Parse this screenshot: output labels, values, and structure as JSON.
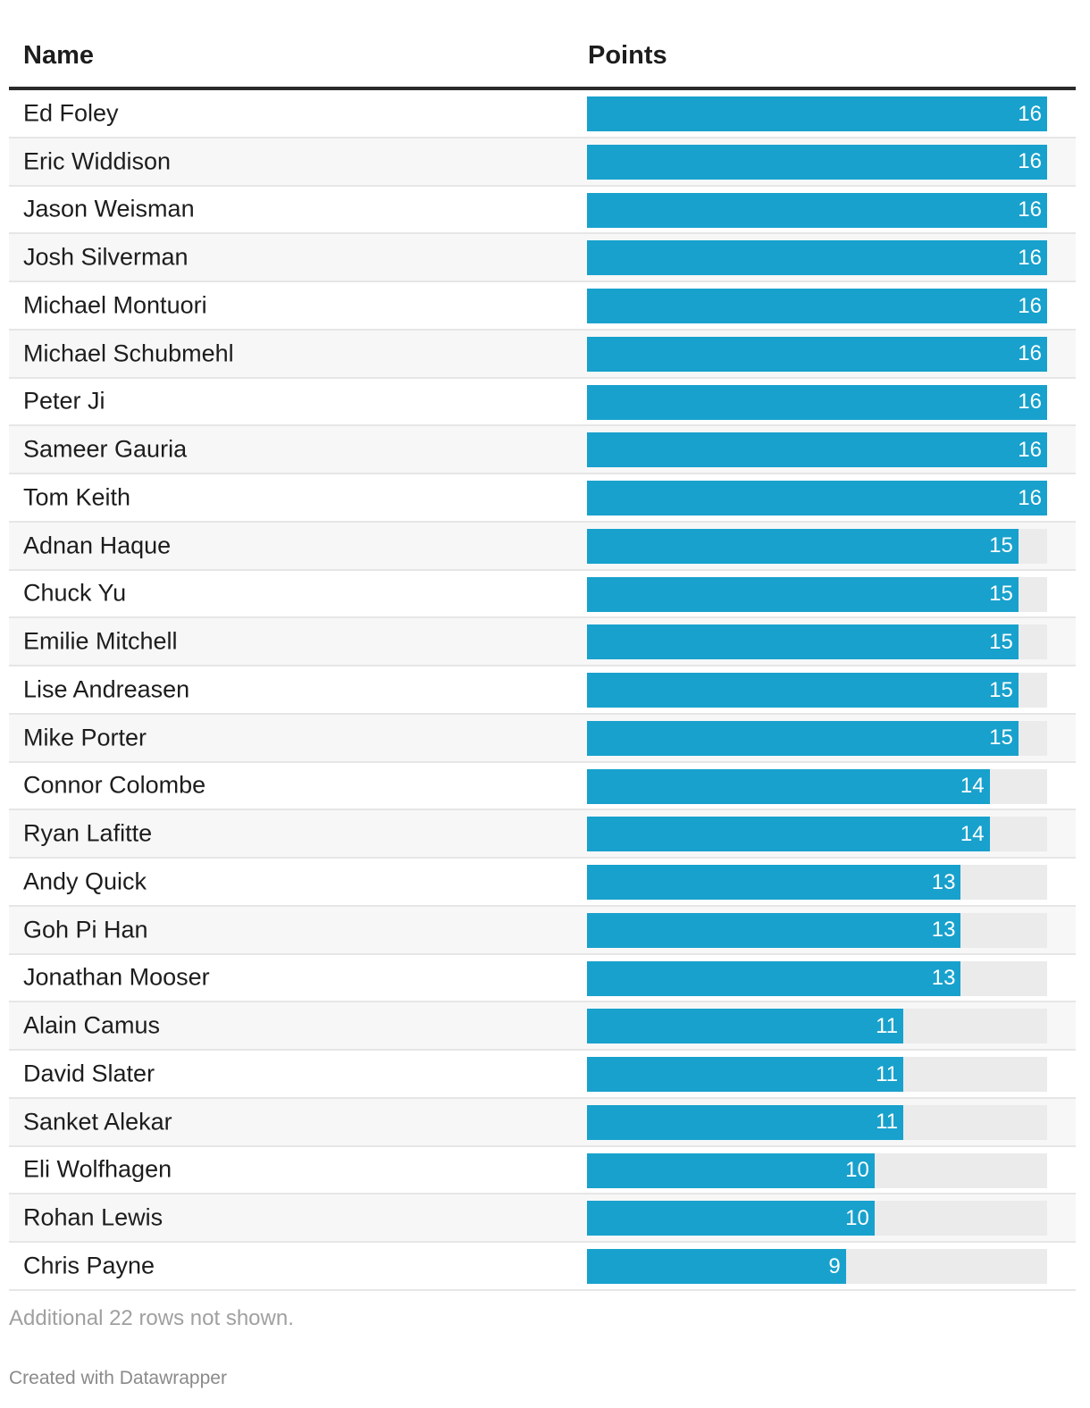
{
  "columns": {
    "name": "Name",
    "points": "Points"
  },
  "chart_data": {
    "type": "bar",
    "orientation": "horizontal",
    "xlim": [
      0,
      16
    ],
    "bar_color": "#18a1cd",
    "track_color": "#ebebeb",
    "categories": [
      "Ed Foley",
      "Eric Widdison",
      "Jason Weisman",
      "Josh Silverman",
      "Michael Montuori",
      "Michael Schubmehl",
      "Peter Ji",
      "Sameer Gauria",
      "Tom Keith",
      "Adnan Haque",
      "Chuck Yu",
      "Emilie Mitchell",
      "Lise Andreasen",
      "Mike Porter",
      "Connor Colombe",
      "Ryan Lafitte",
      "Andy Quick",
      "Goh Pi Han",
      "Jonathan Mooser",
      "Alain Camus",
      "David Slater",
      "Sanket Alekar",
      "Eli Wolfhagen",
      "Rohan Lewis",
      "Chris Payne"
    ],
    "values": [
      16,
      16,
      16,
      16,
      16,
      16,
      16,
      16,
      16,
      15,
      15,
      15,
      15,
      15,
      14,
      14,
      13,
      13,
      13,
      11,
      11,
      11,
      10,
      10,
      9
    ]
  },
  "footer": {
    "note": "Additional 22 rows not shown.",
    "credit": "Created with Datawrapper"
  }
}
